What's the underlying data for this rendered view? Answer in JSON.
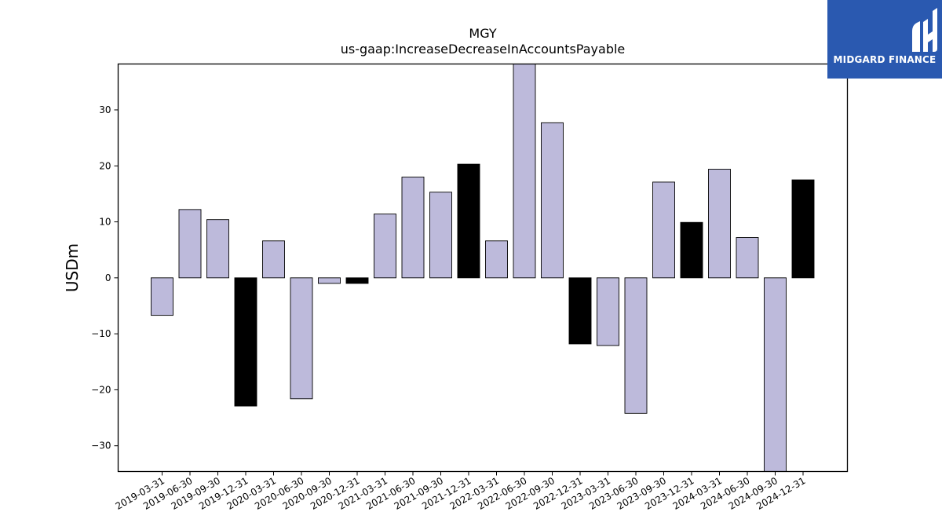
{
  "brand": {
    "name": "MIDGARD FINANCE",
    "bg_color": "#2a59b0",
    "text_color": "#ffffff",
    "icon": "midgard-logo-icon"
  },
  "chart_data": {
    "type": "bar",
    "title": "MGY",
    "subtitle": "us-gaap:IncreaseDecreaseInAccountsPayable",
    "xlabel": "",
    "ylabel": "USDm",
    "ylim": [
      -34.6,
      38.2
    ],
    "yticks": [
      -30,
      -20,
      -10,
      0,
      10,
      20,
      30
    ],
    "grid": false,
    "legend": "none",
    "colors": {
      "regular": "#bdbadb",
      "q4": "#000000",
      "edge": "#000000"
    },
    "categories": [
      "2019-03-31",
      "2019-06-30",
      "2019-09-30",
      "2019-12-31",
      "2020-03-31",
      "2020-06-30",
      "2020-09-30",
      "2020-12-31",
      "2021-03-31",
      "2021-06-30",
      "2021-09-30",
      "2021-12-31",
      "2022-03-31",
      "2022-06-30",
      "2022-09-30",
      "2022-12-31",
      "2023-03-31",
      "2023-06-30",
      "2023-09-30",
      "2023-12-31",
      "2024-03-31",
      "2024-06-30",
      "2024-09-30",
      "2024-12-31"
    ],
    "values": [
      -6.7,
      12.2,
      10.4,
      -22.9,
      6.6,
      -21.6,
      -1.0,
      -1.0,
      11.4,
      18.0,
      15.3,
      20.3,
      6.6,
      38.2,
      27.7,
      -11.8,
      -12.1,
      -24.2,
      17.1,
      9.9,
      19.4,
      7.2,
      -34.6,
      17.5
    ],
    "highlight": [
      false,
      false,
      false,
      true,
      false,
      false,
      false,
      true,
      false,
      false,
      false,
      true,
      false,
      false,
      false,
      true,
      false,
      false,
      false,
      true,
      false,
      false,
      false,
      true
    ]
  }
}
